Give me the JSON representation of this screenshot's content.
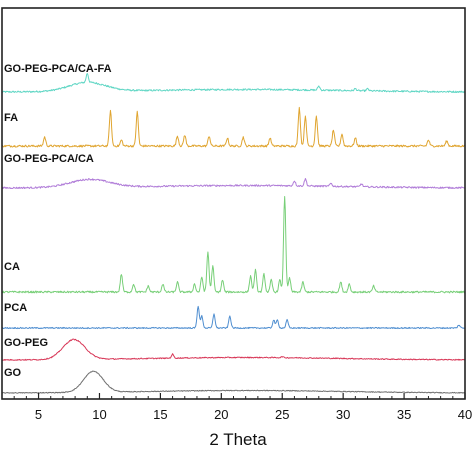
{
  "chart_data": {
    "type": "line",
    "title": "",
    "xlabel": "2 Theta",
    "ylabel": "",
    "xlim": [
      2,
      40
    ],
    "grid": false,
    "legend": "none; each trace labelled at left",
    "x_ticks": [
      5,
      10,
      15,
      20,
      25,
      30,
      35,
      40
    ],
    "x_tick_labels": [
      "5",
      "10",
      "15",
      "20",
      "25",
      "30",
      "35",
      "40"
    ],
    "series": [
      {
        "name": "GO-PEG-PCA/CA-FA",
        "color": "#5fd6c4",
        "peaks": [
          [
            9.0,
            9
          ],
          [
            28.0,
            4
          ],
          [
            31.0,
            2
          ],
          [
            32.0,
            2
          ]
        ],
        "hump": {
          "center": 9.0,
          "width": 1.5,
          "height": 9
        },
        "noise": 0.8
      },
      {
        "name": "FA",
        "color": "#e0a530",
        "peaks": [
          [
            5.5,
            9
          ],
          [
            10.9,
            35
          ],
          [
            11.8,
            6
          ],
          [
            13.1,
            34
          ],
          [
            16.4,
            10
          ],
          [
            17.0,
            11
          ],
          [
            19.0,
            10
          ],
          [
            20.5,
            8
          ],
          [
            21.8,
            9
          ],
          [
            24.0,
            8
          ],
          [
            26.4,
            38
          ],
          [
            26.9,
            30
          ],
          [
            27.8,
            30
          ],
          [
            29.2,
            16
          ],
          [
            29.9,
            12
          ],
          [
            31.0,
            8
          ],
          [
            37.0,
            6
          ],
          [
            38.5,
            5
          ]
        ],
        "hump": null,
        "noise": 1.0
      },
      {
        "name": "GO-PEG-PCA/CA",
        "color": "#b07cd8",
        "peaks": [
          [
            26.0,
            5
          ],
          [
            26.9,
            7
          ],
          [
            29.0,
            3
          ],
          [
            31.5,
            3
          ]
        ],
        "hump": {
          "center": 9.2,
          "width": 1.6,
          "height": 8
        },
        "noise": 0.8
      },
      {
        "name": "CA",
        "color": "#78cf78",
        "peaks": [
          [
            11.8,
            18
          ],
          [
            12.8,
            8
          ],
          [
            14.0,
            6
          ],
          [
            15.2,
            8
          ],
          [
            16.4,
            10
          ],
          [
            17.8,
            8
          ],
          [
            18.4,
            15
          ],
          [
            18.9,
            40
          ],
          [
            19.3,
            26
          ],
          [
            20.1,
            12
          ],
          [
            22.4,
            16
          ],
          [
            22.8,
            22
          ],
          [
            23.5,
            18
          ],
          [
            24.1,
            12
          ],
          [
            24.8,
            12
          ],
          [
            25.2,
            96
          ],
          [
            25.6,
            14
          ],
          [
            26.7,
            10
          ],
          [
            29.8,
            10
          ],
          [
            30.5,
            8
          ],
          [
            32.5,
            6
          ]
        ],
        "hump": null,
        "noise": 0.9
      },
      {
        "name": "PCA",
        "color": "#4f8ed0",
        "peaks": [
          [
            18.1,
            22
          ],
          [
            18.4,
            12
          ],
          [
            19.4,
            14
          ],
          [
            20.7,
            12
          ],
          [
            24.3,
            8
          ],
          [
            24.6,
            8
          ],
          [
            25.4,
            8
          ],
          [
            39.5,
            3
          ]
        ],
        "hump": null,
        "noise": 0.6
      },
      {
        "name": "GO-PEG",
        "color": "#d83858",
        "peaks": [
          [
            16.0,
            4
          ],
          [
            25.0,
            1
          ]
        ],
        "hump": {
          "center": 7.9,
          "width": 0.9,
          "height": 20
        },
        "noise": 0.5
      },
      {
        "name": "GO",
        "color": "#707070",
        "peaks": [],
        "hump": {
          "center": 9.5,
          "width": 0.8,
          "height": 21
        },
        "noise": 0.4
      }
    ]
  }
}
